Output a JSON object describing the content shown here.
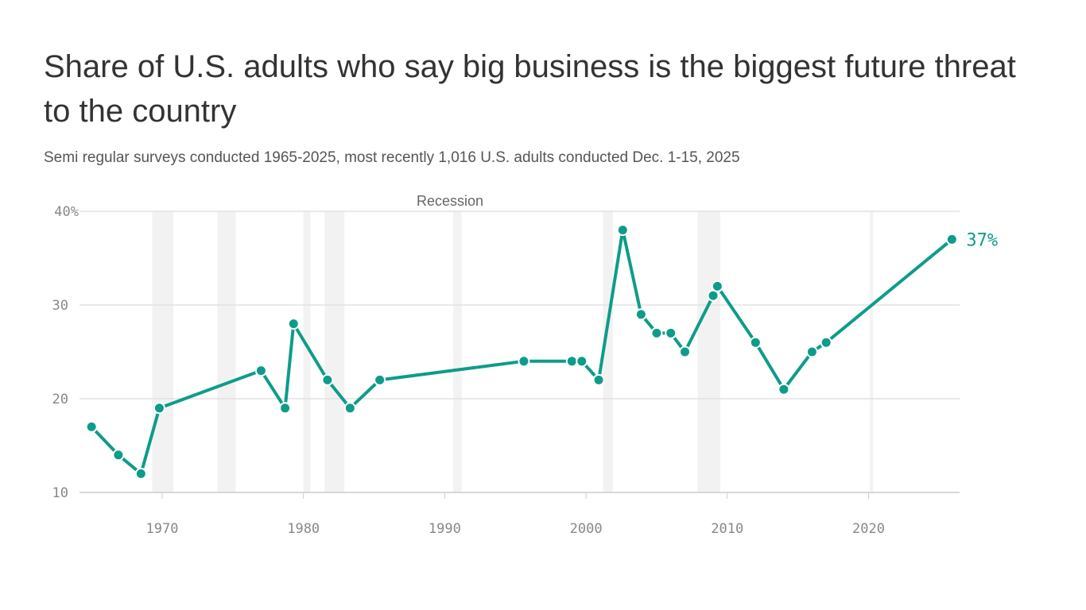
{
  "chart_data": {
    "type": "line",
    "title": "Share of U.S. adults who say big business is the biggest future threat to the country",
    "subtitle": "Semi regular surveys conducted 1965-2025, most recently 1,016 U.S. adults conducted Dec. 1-15, 2025",
    "xlabel": "",
    "ylabel": "",
    "xlim": [
      1962.8,
      2026.5
    ],
    "ylim": [
      10,
      40
    ],
    "x_ticks": [
      1970,
      1980,
      1990,
      2000,
      2010,
      2020
    ],
    "x_tick_labels": [
      "1970",
      "1980",
      "1990",
      "2000",
      "2010",
      "2020"
    ],
    "y_ticks": [
      10,
      20,
      30,
      40
    ],
    "y_tick_labels": [
      "10",
      "20",
      "30",
      "40%"
    ],
    "grid": "horizontal",
    "line_color": "#0e9c8a",
    "band_color": "#f2f2f2",
    "band_label": "Recession",
    "recession_bands": [
      [
        1969.3,
        1970.8
      ],
      [
        1973.9,
        1975.2
      ],
      [
        1980.0,
        1980.5
      ],
      [
        1981.5,
        1982.9
      ],
      [
        1990.6,
        1991.2
      ],
      [
        2001.2,
        2001.9
      ],
      [
        2007.9,
        2009.5
      ],
      [
        2020.1,
        2020.3
      ]
    ],
    "end_label": "37%",
    "series": [
      {
        "x": [
          1965,
          1966.9,
          1968.5,
          1969.8,
          1977,
          1978.7,
          1979.3,
          1981.7,
          1983.3,
          1985.4,
          1995.6,
          1999,
          1999.7,
          2000.9,
          2002.6,
          2003.9,
          2005,
          2006,
          2007,
          2009,
          2009.3,
          2012,
          2014,
          2016,
          2017,
          2025.9
        ],
        "y": [
          17,
          14,
          12,
          19,
          23,
          19,
          28,
          22,
          19,
          22,
          24,
          24,
          24,
          22,
          38,
          29,
          27,
          27,
          25,
          31,
          32,
          26,
          21,
          25,
          26,
          37
        ]
      }
    ]
  }
}
